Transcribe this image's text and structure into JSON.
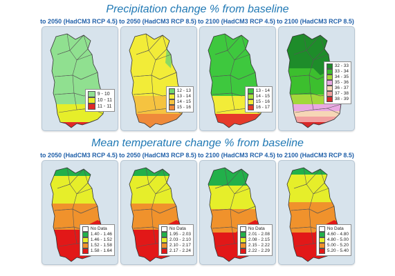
{
  "titles": {
    "precipitation": "Precipitation change % from baseline",
    "temperature": "Mean temperature change % from baseline"
  },
  "columns": [
    "to 2050 (HadCM3 RCP 4.5)",
    "to 2050 (HadCM3 RCP 8.5)",
    "to 2100 (HadCM3 RCP 4.5)",
    "to 2100 (HadCM3 RCP 8.5)"
  ],
  "precipitation_maps": [
    {
      "scenario": "to 2050 (HadCM3 RCP 4.5)",
      "legend": [
        {
          "label": "9 - 10",
          "color": "#90e090"
        },
        {
          "label": "10 - 11",
          "color": "#e6ee2a"
        },
        {
          "label": "11 - 11",
          "color": "#e02828"
        }
      ]
    },
    {
      "scenario": "to 2050 (HadCM3 RCP 8.5)",
      "legend": [
        {
          "label": "12 - 13",
          "color": "#6fd66f"
        },
        {
          "label": "13 - 14",
          "color": "#f2ec38"
        },
        {
          "label": "14 - 15",
          "color": "#f5c340"
        },
        {
          "label": "15 - 16",
          "color": "#ef8a3a"
        }
      ]
    },
    {
      "scenario": "to 2100 (HadCM3 RCP 4.5)",
      "legend": [
        {
          "label": "13 - 14",
          "color": "#3ec83e"
        },
        {
          "label": "14 - 15",
          "color": "#a8e23a"
        },
        {
          "label": "15 - 16",
          "color": "#f2ec38"
        },
        {
          "label": "16 - 17",
          "color": "#e63a2a"
        }
      ]
    },
    {
      "scenario": "to 2100 (HadCM3 RCP 8.5)",
      "legend": [
        {
          "label": "32 - 33",
          "color": "#1e8c2a"
        },
        {
          "label": "33 - 34",
          "color": "#3cbf2e"
        },
        {
          "label": "34 - 35",
          "color": "#a2d83a"
        },
        {
          "label": "35 - 36",
          "color": "#e9a8e2"
        },
        {
          "label": "36 - 37",
          "color": "#f6d6b6"
        },
        {
          "label": "37 - 38",
          "color": "#f2a0a0"
        },
        {
          "label": "38 - 39",
          "color": "#d82828"
        }
      ]
    }
  ],
  "temperature_maps": [
    {
      "scenario": "to 2050 (HadCM3 RCP 4.5)",
      "legend": [
        {
          "label": "No Data",
          "color": "#ffffff"
        },
        {
          "label": "1.40 - 1.46",
          "color": "#22b04a"
        },
        {
          "label": "1.46 - 1.52",
          "color": "#e6ee2a"
        },
        {
          "label": "1.52 - 1.58",
          "color": "#f0922c"
        },
        {
          "label": "1.58 - 1.64",
          "color": "#e21818"
        }
      ]
    },
    {
      "scenario": "to 2050 (HadCM3 RCP 8.5)",
      "legend": [
        {
          "label": "No Data",
          "color": "#ffffff"
        },
        {
          "label": "1.95 - 2.03",
          "color": "#22b04a"
        },
        {
          "label": "2.03 - 2.10",
          "color": "#e6ee2a"
        },
        {
          "label": "2.10 - 2.17",
          "color": "#f0922c"
        },
        {
          "label": "2.17 - 2.24",
          "color": "#e21818"
        }
      ]
    },
    {
      "scenario": "to 2100 (HadCM3 RCP 4.5)",
      "legend": [
        {
          "label": "No Data",
          "color": "#ffffff"
        },
        {
          "label": "2.01 - 2.08",
          "color": "#22b04a"
        },
        {
          "label": "2.08 - 2.15",
          "color": "#e6ee2a"
        },
        {
          "label": "2.15 - 2.22",
          "color": "#f0922c"
        },
        {
          "label": "2.22 - 2.29",
          "color": "#e21818"
        }
      ]
    },
    {
      "scenario": "to 2100 (HadCM3 RCP 8.5)",
      "legend": [
        {
          "label": "No Data",
          "color": "#ffffff"
        },
        {
          "label": "4.60 - 4.80",
          "color": "#22b04a"
        },
        {
          "label": "4.80 - 5.00",
          "color": "#e6ee2a"
        },
        {
          "label": "5.00 - 5.20",
          "color": "#f0922c"
        },
        {
          "label": "5.20 - 5.40",
          "color": "#e21818"
        }
      ]
    }
  ],
  "colors": {
    "title": "#1f78b4",
    "column_label": "#1f5fa8",
    "panel_bg": "#d7e3ec"
  }
}
